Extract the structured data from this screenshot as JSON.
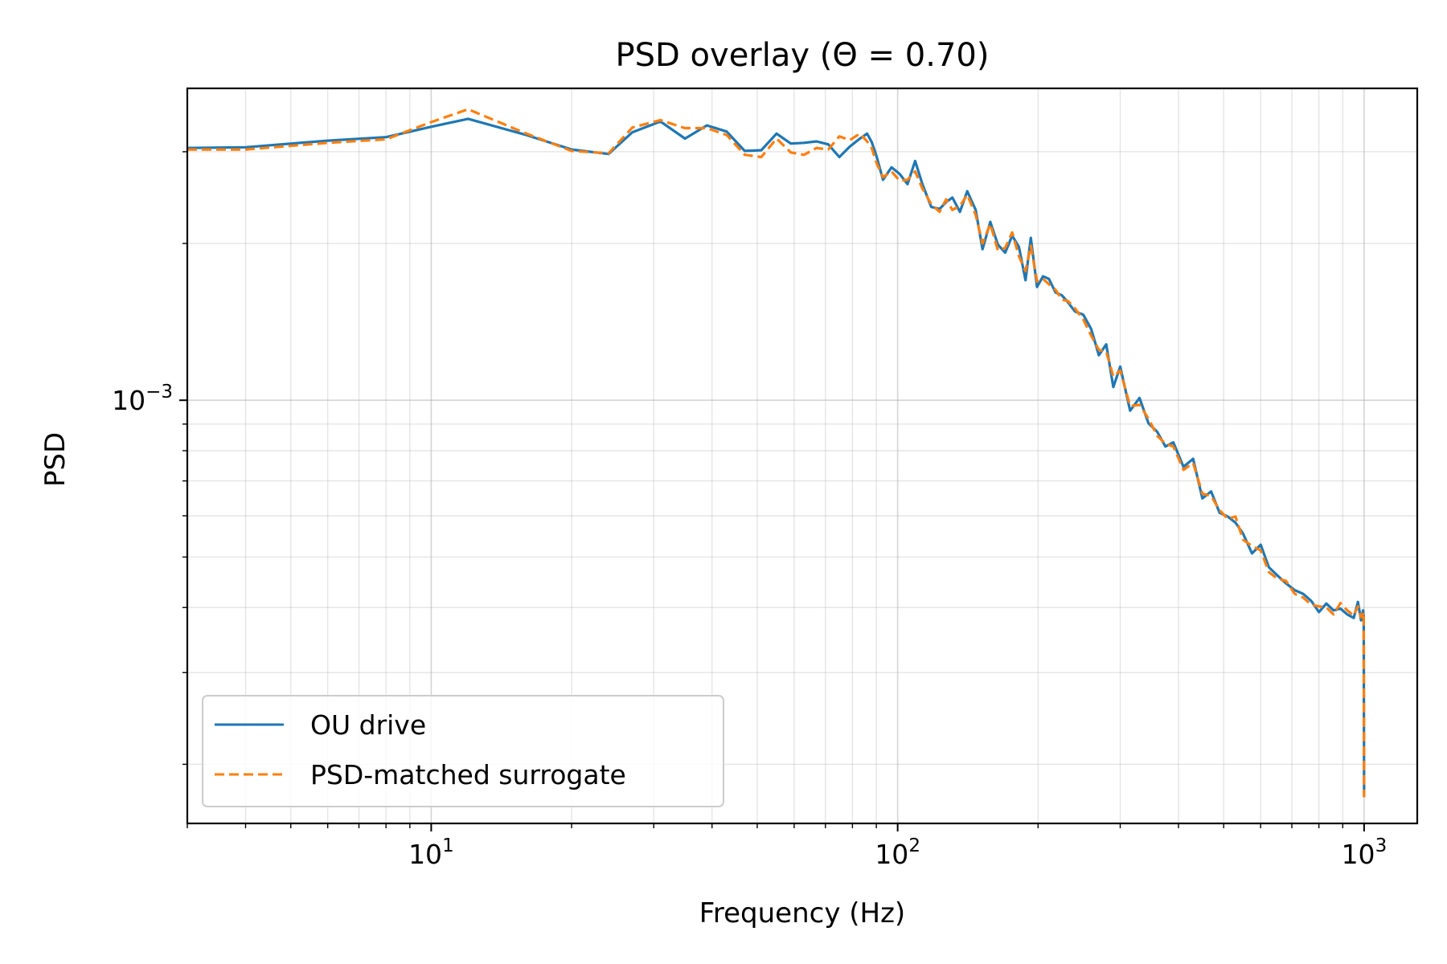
{
  "chart_data": {
    "type": "line",
    "title": "PSD overlay (Θ = 0.70)",
    "xlabel": "Frequency (Hz)",
    "ylabel": "PSD",
    "xscale": "log",
    "yscale": "log",
    "xlim": [
      3.0,
      1300.0
    ],
    "ylim": [
      0.000154,
      0.00397
    ],
    "x_ticks": [
      {
        "base": "10",
        "exp": "1",
        "value": 10
      },
      {
        "base": "10",
        "exp": "2",
        "value": 100
      },
      {
        "base": "10",
        "exp": "3",
        "value": 1000
      }
    ],
    "y_ticks": [
      {
        "base": "10",
        "exp": "−3",
        "value": 0.001
      }
    ],
    "grid": true,
    "legend_position": "lower-left",
    "series": [
      {
        "name": "OU drive",
        "color": "#1f77b4",
        "style": "solid",
        "x": [
          3,
          4,
          6,
          8,
          10,
          12,
          16,
          20,
          24,
          27,
          31,
          35,
          39,
          43,
          47,
          51,
          55,
          59,
          63,
          67,
          71,
          75,
          79,
          83,
          86,
          88,
          90,
          93,
          97,
          101,
          105,
          109,
          113,
          118,
          123,
          127,
          131,
          136,
          141,
          147,
          152,
          158,
          164,
          170,
          176,
          182,
          188,
          193,
          199,
          205,
          211,
          218,
          225,
          232,
          240,
          250,
          260,
          270,
          280,
          290,
          300,
          315,
          330,
          345,
          360,
          375,
          390,
          410,
          430,
          450,
          470,
          490,
          510,
          530,
          550,
          575,
          600,
          625,
          650,
          680,
          710,
          740,
          770,
          800,
          830,
          860,
          890,
          920,
          950,
          970,
          985,
          995,
          998,
          999,
          1000
        ],
        "y": [
          0.00305,
          0.00306,
          0.00315,
          0.0032,
          0.00335,
          0.00347,
          0.00323,
          0.00303,
          0.00297,
          0.00327,
          0.00343,
          0.00318,
          0.00337,
          0.00328,
          0.00301,
          0.00302,
          0.00325,
          0.00311,
          0.00312,
          0.00314,
          0.0031,
          0.00293,
          0.00307,
          0.00318,
          0.00325,
          0.00313,
          0.00295,
          0.00265,
          0.0028,
          0.00272,
          0.0026,
          0.00288,
          0.0026,
          0.00235,
          0.00233,
          0.0024,
          0.00245,
          0.0023,
          0.00252,
          0.00232,
          0.00195,
          0.0022,
          0.00199,
          0.00192,
          0.00207,
          0.00197,
          0.0017,
          0.00205,
          0.00165,
          0.00173,
          0.00171,
          0.00161,
          0.00159,
          0.00154,
          0.00148,
          0.00146,
          0.00137,
          0.00122,
          0.00128,
          0.00106,
          0.00116,
          0.000955,
          0.00101,
          0.000903,
          0.00087,
          0.000815,
          0.00083,
          0.000745,
          0.000772,
          0.000648,
          0.000668,
          0.000608,
          0.000598,
          0.000582,
          0.000555,
          0.000508,
          0.000528,
          0.000478,
          0.000462,
          0.000445,
          0.000432,
          0.000425,
          0.000412,
          0.000392,
          0.000407,
          0.000395,
          0.000398,
          0.000388,
          0.000382,
          0.00041,
          0.000378,
          0.000395,
          0.000385,
          0.000265,
          0.000173
        ]
      },
      {
        "name": "PSD-matched surrogate",
        "color": "#ff7f0e",
        "style": "dashed",
        "x": [
          3,
          4,
          6,
          8,
          10,
          12,
          16,
          20,
          24,
          27,
          31,
          35,
          39,
          43,
          47,
          51,
          55,
          59,
          63,
          67,
          71,
          75,
          79,
          83,
          86,
          88,
          90,
          93,
          97,
          101,
          105,
          109,
          113,
          118,
          123,
          127,
          131,
          136,
          141,
          147,
          152,
          158,
          164,
          170,
          176,
          182,
          188,
          193,
          199,
          205,
          211,
          218,
          225,
          232,
          240,
          250,
          260,
          270,
          280,
          290,
          300,
          315,
          330,
          345,
          360,
          375,
          390,
          410,
          430,
          450,
          470,
          490,
          510,
          530,
          550,
          575,
          600,
          625,
          650,
          680,
          710,
          740,
          770,
          800,
          830,
          860,
          890,
          920,
          950,
          970,
          985,
          995,
          998,
          999,
          1000
        ],
        "y": [
          0.00303,
          0.00303,
          0.00312,
          0.00317,
          0.00342,
          0.00362,
          0.00325,
          0.00301,
          0.00298,
          0.00334,
          0.00345,
          0.00333,
          0.00333,
          0.00323,
          0.00296,
          0.00293,
          0.00318,
          0.00299,
          0.00296,
          0.00305,
          0.00303,
          0.00321,
          0.00316,
          0.00325,
          0.00314,
          0.00305,
          0.00286,
          0.00268,
          0.00275,
          0.00264,
          0.00265,
          0.00275,
          0.00255,
          0.00238,
          0.0023,
          0.00243,
          0.00232,
          0.00236,
          0.00248,
          0.00227,
          0.002,
          0.00218,
          0.00194,
          0.00196,
          0.0021,
          0.00189,
          0.00177,
          0.00198,
          0.00169,
          0.00171,
          0.00167,
          0.00163,
          0.00156,
          0.00155,
          0.0015,
          0.00143,
          0.00133,
          0.00125,
          0.00124,
          0.00111,
          0.00114,
          0.000975,
          0.00098,
          0.000922,
          0.000855,
          0.000825,
          0.000815,
          0.000735,
          0.000758,
          0.000662,
          0.000655,
          0.000615,
          0.000592,
          0.000598,
          0.00054,
          0.000525,
          0.000515,
          0.000468,
          0.000455,
          0.00045,
          0.000425,
          0.000418,
          0.000405,
          0.000402,
          0.0004,
          0.000388,
          0.000408,
          0.000395,
          0.000386,
          0.000402,
          0.000383,
          0.000388,
          0.000392,
          0.000265,
          0.000173
        ]
      }
    ]
  }
}
